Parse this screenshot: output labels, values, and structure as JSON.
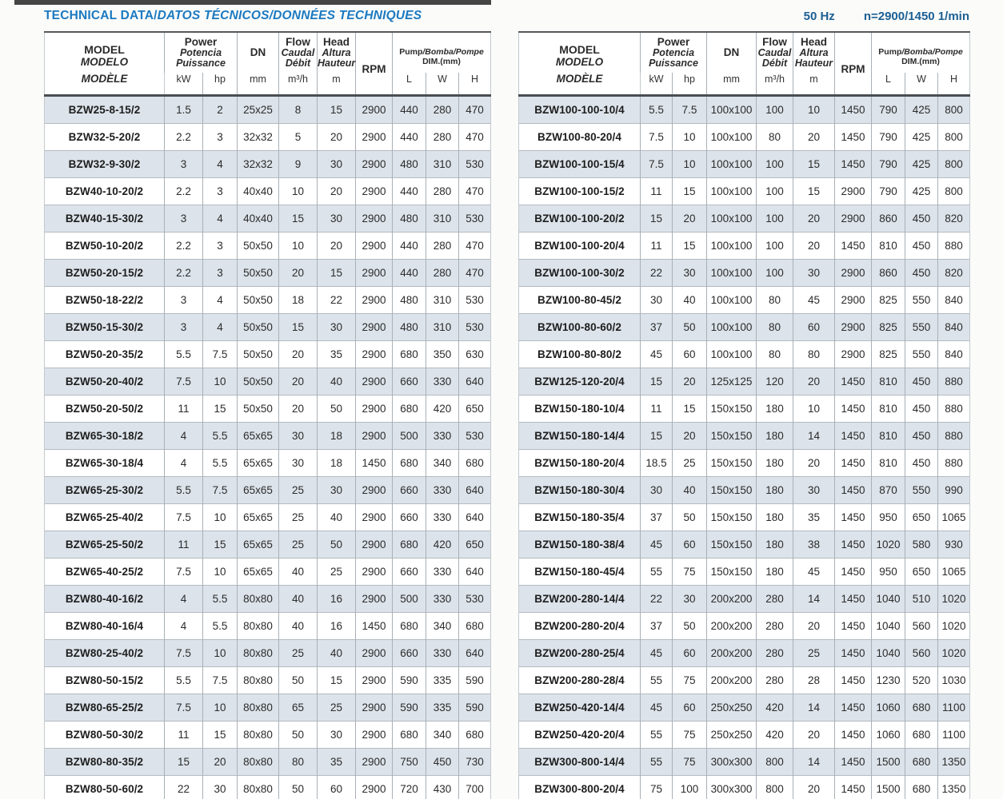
{
  "page": {
    "title_primary": "TECHNICAL DATA/",
    "title_secondary": "DATOS TÉCNICOS/DONNÉES TECHNIQUES",
    "frequency": "50 Hz",
    "speed": "n=2900/1450 1/min"
  },
  "colors": {
    "title_blue": "#1b79c0",
    "freq_blue": "#1d6093",
    "row_shade": "#dce3ea",
    "border_dark": "#4a4e52"
  },
  "header": {
    "model": {
      "en": "MODEL",
      "es": "MODELO",
      "fr": "MODÈLE"
    },
    "power": {
      "en": "Power",
      "es": "Potencia",
      "fr": "Puissance",
      "kw": "kW",
      "hp": "hp"
    },
    "dn": {
      "label": "DN",
      "unit": "mm"
    },
    "flow": {
      "en": "Flow",
      "es": "Caudal",
      "fr": "Débit",
      "unit": "m³/h"
    },
    "head": {
      "en": "Head",
      "es": "Altura",
      "fr": "Hauteur",
      "unit": "m"
    },
    "rpm": "RPM",
    "dim": {
      "en": "Pump",
      "other": "/Bomba/Pompe",
      "sub": "DIM.(mm)",
      "l": "L",
      "w": "W",
      "h": "H"
    }
  },
  "tables": {
    "left": {
      "rows": [
        [
          "BZW25-8-15/2",
          "1.5",
          "2",
          "25x25",
          "8",
          "15",
          "2900",
          "440",
          "280",
          "470"
        ],
        [
          "BZW32-5-20/2",
          "2.2",
          "3",
          "32x32",
          "5",
          "20",
          "2900",
          "440",
          "280",
          "470"
        ],
        [
          "BZW32-9-30/2",
          "3",
          "4",
          "32x32",
          "9",
          "30",
          "2900",
          "480",
          "310",
          "530"
        ],
        [
          "BZW40-10-20/2",
          "2.2",
          "3",
          "40x40",
          "10",
          "20",
          "2900",
          "440",
          "280",
          "470"
        ],
        [
          "BZW40-15-30/2",
          "3",
          "4",
          "40x40",
          "15",
          "30",
          "2900",
          "480",
          "310",
          "530"
        ],
        [
          "BZW50-10-20/2",
          "2.2",
          "3",
          "50x50",
          "10",
          "20",
          "2900",
          "440",
          "280",
          "470"
        ],
        [
          "BZW50-20-15/2",
          "2.2",
          "3",
          "50x50",
          "20",
          "15",
          "2900",
          "440",
          "280",
          "470"
        ],
        [
          "BZW50-18-22/2",
          "3",
          "4",
          "50x50",
          "18",
          "22",
          "2900",
          "480",
          "310",
          "530"
        ],
        [
          "BZW50-15-30/2",
          "3",
          "4",
          "50x50",
          "15",
          "30",
          "2900",
          "480",
          "310",
          "530"
        ],
        [
          "BZW50-20-35/2",
          "5.5",
          "7.5",
          "50x50",
          "20",
          "35",
          "2900",
          "680",
          "350",
          "630"
        ],
        [
          "BZW50-20-40/2",
          "7.5",
          "10",
          "50x50",
          "20",
          "40",
          "2900",
          "660",
          "330",
          "640"
        ],
        [
          "BZW50-20-50/2",
          "11",
          "15",
          "50x50",
          "20",
          "50",
          "2900",
          "680",
          "420",
          "650"
        ],
        [
          "BZW65-30-18/2",
          "4",
          "5.5",
          "65x65",
          "30",
          "18",
          "2900",
          "500",
          "330",
          "530"
        ],
        [
          "BZW65-30-18/4",
          "4",
          "5.5",
          "65x65",
          "30",
          "18",
          "1450",
          "680",
          "340",
          "680"
        ],
        [
          "BZW65-25-30/2",
          "5.5",
          "7.5",
          "65x65",
          "25",
          "30",
          "2900",
          "660",
          "330",
          "640"
        ],
        [
          "BZW65-25-40/2",
          "7.5",
          "10",
          "65x65",
          "25",
          "40",
          "2900",
          "660",
          "330",
          "640"
        ],
        [
          "BZW65-25-50/2",
          "11",
          "15",
          "65x65",
          "25",
          "50",
          "2900",
          "680",
          "420",
          "650"
        ],
        [
          "BZW65-40-25/2",
          "7.5",
          "10",
          "65x65",
          "40",
          "25",
          "2900",
          "660",
          "330",
          "640"
        ],
        [
          "BZW80-40-16/2",
          "4",
          "5.5",
          "80x80",
          "40",
          "16",
          "2900",
          "500",
          "330",
          "530"
        ],
        [
          "BZW80-40-16/4",
          "4",
          "5.5",
          "80x80",
          "40",
          "16",
          "1450",
          "680",
          "340",
          "680"
        ],
        [
          "BZW80-25-40/2",
          "7.5",
          "10",
          "80x80",
          "25",
          "40",
          "2900",
          "660",
          "330",
          "640"
        ],
        [
          "BZW80-50-15/2",
          "5.5",
          "7.5",
          "80x80",
          "50",
          "15",
          "2900",
          "590",
          "335",
          "590"
        ],
        [
          "BZW80-65-25/2",
          "7.5",
          "10",
          "80x80",
          "65",
          "25",
          "2900",
          "590",
          "335",
          "590"
        ],
        [
          "BZW80-50-30/2",
          "11",
          "15",
          "80x80",
          "50",
          "30",
          "2900",
          "680",
          "340",
          "680"
        ],
        [
          "BZW80-80-35/2",
          "15",
          "20",
          "80x80",
          "80",
          "35",
          "2900",
          "750",
          "450",
          "730"
        ],
        [
          "BZW80-50-60/2",
          "22",
          "30",
          "80x80",
          "50",
          "60",
          "2900",
          "720",
          "430",
          "700"
        ]
      ]
    },
    "right": {
      "rows": [
        [
          "BZW100-100-10/4",
          "5.5",
          "7.5",
          "100x100",
          "100",
          "10",
          "1450",
          "790",
          "425",
          "800"
        ],
        [
          "BZW100-80-20/4",
          "7.5",
          "10",
          "100x100",
          "80",
          "20",
          "1450",
          "790",
          "425",
          "800"
        ],
        [
          "BZW100-100-15/4",
          "7.5",
          "10",
          "100x100",
          "100",
          "15",
          "1450",
          "790",
          "425",
          "800"
        ],
        [
          "BZW100-100-15/2",
          "11",
          "15",
          "100x100",
          "100",
          "15",
          "2900",
          "790",
          "425",
          "800"
        ],
        [
          "BZW100-100-20/2",
          "15",
          "20",
          "100x100",
          "100",
          "20",
          "2900",
          "860",
          "450",
          "820"
        ],
        [
          "BZW100-100-20/4",
          "11",
          "15",
          "100x100",
          "100",
          "20",
          "1450",
          "810",
          "450",
          "880"
        ],
        [
          "BZW100-100-30/2",
          "22",
          "30",
          "100x100",
          "100",
          "30",
          "2900",
          "860",
          "450",
          "820"
        ],
        [
          "BZW100-80-45/2",
          "30",
          "40",
          "100x100",
          "80",
          "45",
          "2900",
          "825",
          "550",
          "840"
        ],
        [
          "BZW100-80-60/2",
          "37",
          "50",
          "100x100",
          "80",
          "60",
          "2900",
          "825",
          "550",
          "840"
        ],
        [
          "BZW100-80-80/2",
          "45",
          "60",
          "100x100",
          "80",
          "80",
          "2900",
          "825",
          "550",
          "840"
        ],
        [
          "BZW125-120-20/4",
          "15",
          "20",
          "125x125",
          "120",
          "20",
          "1450",
          "810",
          "450",
          "880"
        ],
        [
          "BZW150-180-10/4",
          "11",
          "15",
          "150x150",
          "180",
          "10",
          "1450",
          "810",
          "450",
          "880"
        ],
        [
          "BZW150-180-14/4",
          "15",
          "20",
          "150x150",
          "180",
          "14",
          "1450",
          "810",
          "450",
          "880"
        ],
        [
          "BZW150-180-20/4",
          "18.5",
          "25",
          "150x150",
          "180",
          "20",
          "1450",
          "810",
          "450",
          "880"
        ],
        [
          "BZW150-180-30/4",
          "30",
          "40",
          "150x150",
          "180",
          "30",
          "1450",
          "870",
          "550",
          "990"
        ],
        [
          "BZW150-180-35/4",
          "37",
          "50",
          "150x150",
          "180",
          "35",
          "1450",
          "950",
          "650",
          "1065"
        ],
        [
          "BZW150-180-38/4",
          "45",
          "60",
          "150x150",
          "180",
          "38",
          "1450",
          "1020",
          "580",
          "930"
        ],
        [
          "BZW150-180-45/4",
          "55",
          "75",
          "150x150",
          "180",
          "45",
          "1450",
          "950",
          "650",
          "1065"
        ],
        [
          "BZW200-280-14/4",
          "22",
          "30",
          "200x200",
          "280",
          "14",
          "1450",
          "1040",
          "510",
          "1020"
        ],
        [
          "BZW200-280-20/4",
          "37",
          "50",
          "200x200",
          "280",
          "20",
          "1450",
          "1040",
          "560",
          "1020"
        ],
        [
          "BZW200-280-25/4",
          "45",
          "60",
          "200x200",
          "280",
          "25",
          "1450",
          "1040",
          "560",
          "1020"
        ],
        [
          "BZW200-280-28/4",
          "55",
          "75",
          "200x200",
          "280",
          "28",
          "1450",
          "1230",
          "520",
          "1030"
        ],
        [
          "BZW250-420-14/4",
          "45",
          "60",
          "250x250",
          "420",
          "14",
          "1450",
          "1060",
          "680",
          "1100"
        ],
        [
          "BZW250-420-20/4",
          "55",
          "75",
          "250x250",
          "420",
          "20",
          "1450",
          "1060",
          "680",
          "1100"
        ],
        [
          "BZW300-800-14/4",
          "55",
          "75",
          "300x300",
          "800",
          "14",
          "1450",
          "1500",
          "680",
          "1350"
        ],
        [
          "BZW300-800-20/4",
          "75",
          "100",
          "300x300",
          "800",
          "20",
          "1450",
          "1500",
          "680",
          "1350"
        ]
      ]
    }
  }
}
